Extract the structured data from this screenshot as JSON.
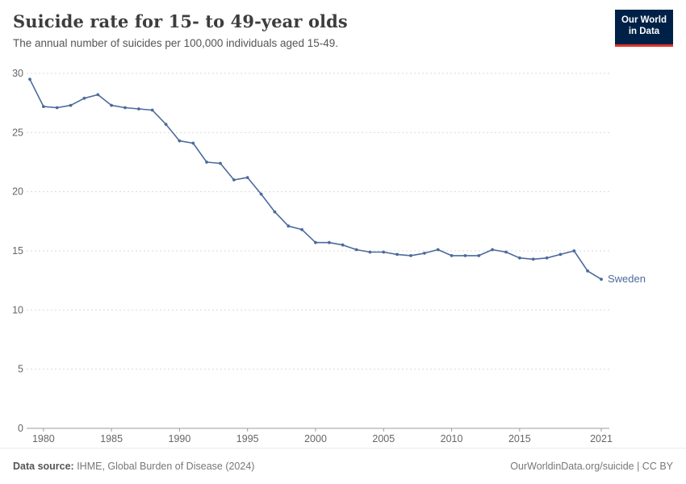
{
  "header": {
    "title": "Suicide rate for 15- to 49-year olds",
    "subtitle": "The annual number of suicides per 100,000 individuals aged 15-49.",
    "logo_line1": "Our World",
    "logo_line2": "in Data"
  },
  "footer": {
    "source_label": "Data source:",
    "source_text": " IHME, Global Burden of Disease (2024)",
    "right_text": "OurWorldinData.org/suicide | CC BY"
  },
  "colors": {
    "line": "#4c6a9c",
    "grid": "#d9d9d9",
    "axis": "#9c9c9c",
    "tick_label": "#666666",
    "logo_bg": "#002147",
    "logo_accent": "#e0362c"
  },
  "chart_data": {
    "type": "line",
    "title": "Suicide rate for 15- to 49-year olds",
    "xlabel": "",
    "ylabel": "",
    "xlim": [
      1979,
      2021
    ],
    "ylim": [
      0,
      30
    ],
    "grid": "horizontal-dashed",
    "legend_position": "end-of-line-label",
    "xticks": [
      1980,
      1985,
      1990,
      1995,
      2000,
      2005,
      2010,
      2015,
      2021
    ],
    "yticks": [
      0,
      5,
      10,
      15,
      20,
      25,
      30
    ],
    "end_label": "Sweden",
    "series": [
      {
        "name": "Sweden",
        "color": "#4c6a9c",
        "x": [
          1979,
          1980,
          1981,
          1982,
          1983,
          1984,
          1985,
          1986,
          1987,
          1988,
          1989,
          1990,
          1991,
          1992,
          1993,
          1994,
          1995,
          1996,
          1997,
          1998,
          1999,
          2000,
          2001,
          2002,
          2003,
          2004,
          2005,
          2006,
          2007,
          2008,
          2009,
          2010,
          2011,
          2012,
          2013,
          2014,
          2015,
          2016,
          2017,
          2018,
          2019,
          2020,
          2021
        ],
        "values": [
          29.5,
          27.2,
          27.1,
          27.3,
          27.9,
          28.2,
          27.3,
          27.1,
          27.0,
          26.9,
          25.7,
          24.3,
          24.1,
          22.5,
          22.4,
          21.0,
          21.2,
          19.8,
          18.3,
          17.1,
          16.8,
          15.7,
          15.7,
          15.5,
          15.1,
          14.9,
          14.9,
          14.7,
          14.6,
          14.8,
          15.1,
          14.6,
          14.6,
          14.6,
          15.1,
          14.9,
          14.4,
          14.3,
          14.4,
          14.7,
          15.0,
          13.3,
          12.6
        ]
      }
    ]
  }
}
